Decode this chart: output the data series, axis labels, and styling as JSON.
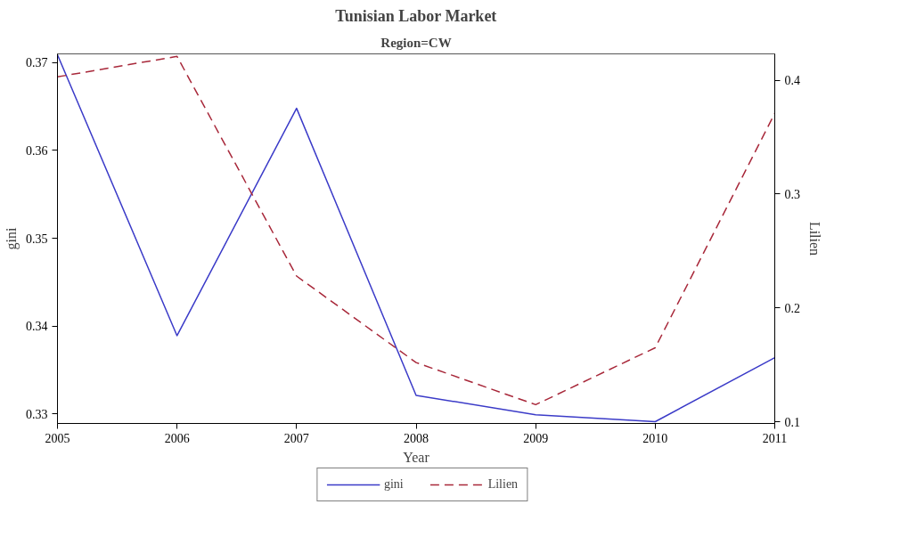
{
  "chart_data": {
    "type": "line",
    "title": "Tunisian Labor Market",
    "subtitle": "Region=CW",
    "xlabel": "Year",
    "ylabel": "gini",
    "y2label": "Lilien",
    "x": [
      2005,
      2006,
      2007,
      2008,
      2009,
      2010,
      2011
    ],
    "series": [
      {
        "name": "gini",
        "color": "#3b3bc8",
        "line_style": "solid",
        "values": [
          0.3709,
          0.3389,
          0.3648,
          0.3321,
          0.3299,
          0.3291,
          0.3364
        ]
      },
      {
        "name": "Lilien",
        "color": "#a8283a",
        "line_style": "dashed",
        "axis": "y2",
        "values": [
          0.403,
          0.421,
          0.228,
          0.152,
          0.115,
          0.165,
          0.371
        ]
      }
    ],
    "xlim": [
      2005,
      2011
    ],
    "xticks": [
      2005,
      2006,
      2007,
      2008,
      2009,
      2010,
      2011
    ],
    "ylim": [
      0.3289,
      0.371
    ],
    "yticks": [
      {
        "value": 0.33,
        "label": "0.33"
      },
      {
        "value": 0.34,
        "label": "0.34"
      },
      {
        "value": 0.35,
        "label": "0.35"
      },
      {
        "value": 0.36,
        "label": "0.36"
      },
      {
        "value": 0.37,
        "label": "0.37"
      }
    ],
    "y2lim": [
      0.0985,
      0.4232
    ],
    "y2ticks": [
      {
        "value": 0.1,
        "label": "0.1"
      },
      {
        "value": 0.2,
        "label": "0.2"
      },
      {
        "value": 0.3,
        "label": "0.3"
      },
      {
        "value": 0.4,
        "label": "0.4"
      }
    ],
    "grid": false,
    "legend": "bottom",
    "marker": "none"
  }
}
